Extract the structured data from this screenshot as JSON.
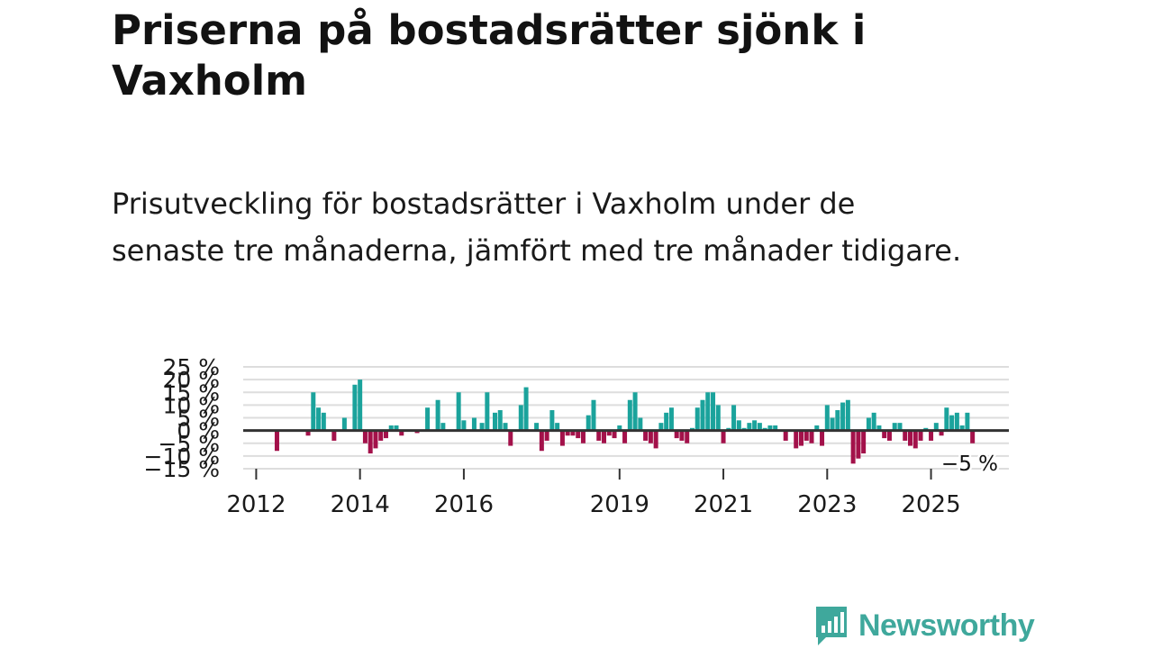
{
  "header": {
    "title": "Priserna på bostadsrätter sjönk i Vaxholm",
    "subtitle": "Prisutveckling för bostadsrätter i Vaxholm under de senaste tre månaderna, jämfört med tre månader tidigare."
  },
  "chart_data": {
    "type": "bar",
    "title": "Priserna på bostadsrätter sjönk i Vaxholm",
    "subtitle": "Prisutveckling för bostadsrätter i Vaxholm under de senaste tre månaderna, jämfört med tre månader tidigare.",
    "xlabel": "",
    "ylabel": "",
    "ylim": [
      -15,
      25
    ],
    "x_range": [
      2011.75,
      2026.5
    ],
    "y_ticks": [
      25,
      20,
      15,
      10,
      5,
      0,
      -5,
      -10,
      -15
    ],
    "y_tick_labels": [
      "25 %",
      "20 %",
      "15 %",
      "10 %",
      "5 %",
      "0 %",
      "−5 %",
      "−10 %",
      "−15 %"
    ],
    "x_ticks": [
      2012,
      2014,
      2016,
      2019,
      2021,
      2023,
      2025
    ],
    "x_tick_labels": [
      "2012",
      "2014",
      "2016",
      "2019",
      "2021",
      "2023",
      "2025"
    ],
    "grid": true,
    "colors": {
      "positive": "#1ba39c",
      "negative": "#a3114a",
      "zero_line": "#333333",
      "grid": "#dddddd"
    },
    "end_label": "−5 %",
    "series": [
      {
        "name": "Prisutveckling",
        "x": [
          2012.4,
          2013.0,
          2013.1,
          2013.2,
          2013.3,
          2013.5,
          2013.7,
          2013.9,
          2014.0,
          2014.1,
          2014.2,
          2014.3,
          2014.4,
          2014.5,
          2014.6,
          2014.7,
          2014.8,
          2015.1,
          2015.3,
          2015.5,
          2015.6,
          2015.9,
          2016.0,
          2016.2,
          2016.35,
          2016.45,
          2016.6,
          2016.7,
          2016.8,
          2016.9,
          2017.1,
          2017.2,
          2017.4,
          2017.5,
          2017.6,
          2017.7,
          2017.8,
          2017.9,
          2018.0,
          2018.1,
          2018.2,
          2018.3,
          2018.4,
          2018.5,
          2018.6,
          2018.7,
          2018.8,
          2018.9,
          2019.0,
          2019.1,
          2019.2,
          2019.3,
          2019.4,
          2019.5,
          2019.6,
          2019.7,
          2019.8,
          2019.9,
          2020.0,
          2020.1,
          2020.2,
          2020.3,
          2020.4,
          2020.5,
          2020.6,
          2020.7,
          2020.8,
          2020.9,
          2021.0,
          2021.1,
          2021.2,
          2021.3,
          2021.4,
          2021.5,
          2021.6,
          2021.7,
          2021.8,
          2021.9,
          2022.0,
          2022.2,
          2022.4,
          2022.5,
          2022.6,
          2022.7,
          2022.8,
          2022.9,
          2023.0,
          2023.1,
          2023.2,
          2023.3,
          2023.4,
          2023.5,
          2023.6,
          2023.7,
          2023.8,
          2023.9,
          2024.0,
          2024.1,
          2024.2,
          2024.3,
          2024.4,
          2024.5,
          2024.6,
          2024.7,
          2024.8,
          2024.9,
          2025.0,
          2025.1,
          2025.2,
          2025.3,
          2025.4,
          2025.5,
          2025.6,
          2025.7,
          2025.8
        ],
        "values": [
          -8,
          -2,
          15,
          9,
          7,
          -4,
          5,
          18,
          20,
          -5,
          -9,
          -7,
          -4,
          -3,
          2,
          2,
          -2,
          -1,
          9,
          12,
          3,
          15,
          4,
          5,
          3,
          15,
          7,
          8,
          3,
          -6,
          10,
          17,
          3,
          -8,
          -4,
          8,
          3,
          -6,
          -2,
          -2,
          -3,
          -5,
          6,
          12,
          -4,
          -5,
          -2,
          -3,
          2,
          -5,
          12,
          15,
          5,
          -4,
          -5,
          -7,
          3,
          7,
          9,
          -3,
          -4,
          -5,
          1,
          9,
          12,
          15,
          15,
          10,
          -5,
          1,
          10,
          4,
          1,
          3,
          4,
          3,
          1,
          2,
          2,
          -4,
          -7,
          -6,
          -4,
          -5,
          2,
          -6,
          10,
          5,
          8,
          11,
          12,
          -13,
          -11,
          -9,
          5,
          7,
          2,
          -3,
          -4,
          3,
          3,
          -4,
          -6,
          -7,
          -4,
          1,
          -4,
          3,
          -2,
          9,
          6,
          7,
          2,
          7,
          -5
        ]
      }
    ]
  },
  "brand": {
    "name": "Newsworthy",
    "accent": "#3fa89c"
  }
}
